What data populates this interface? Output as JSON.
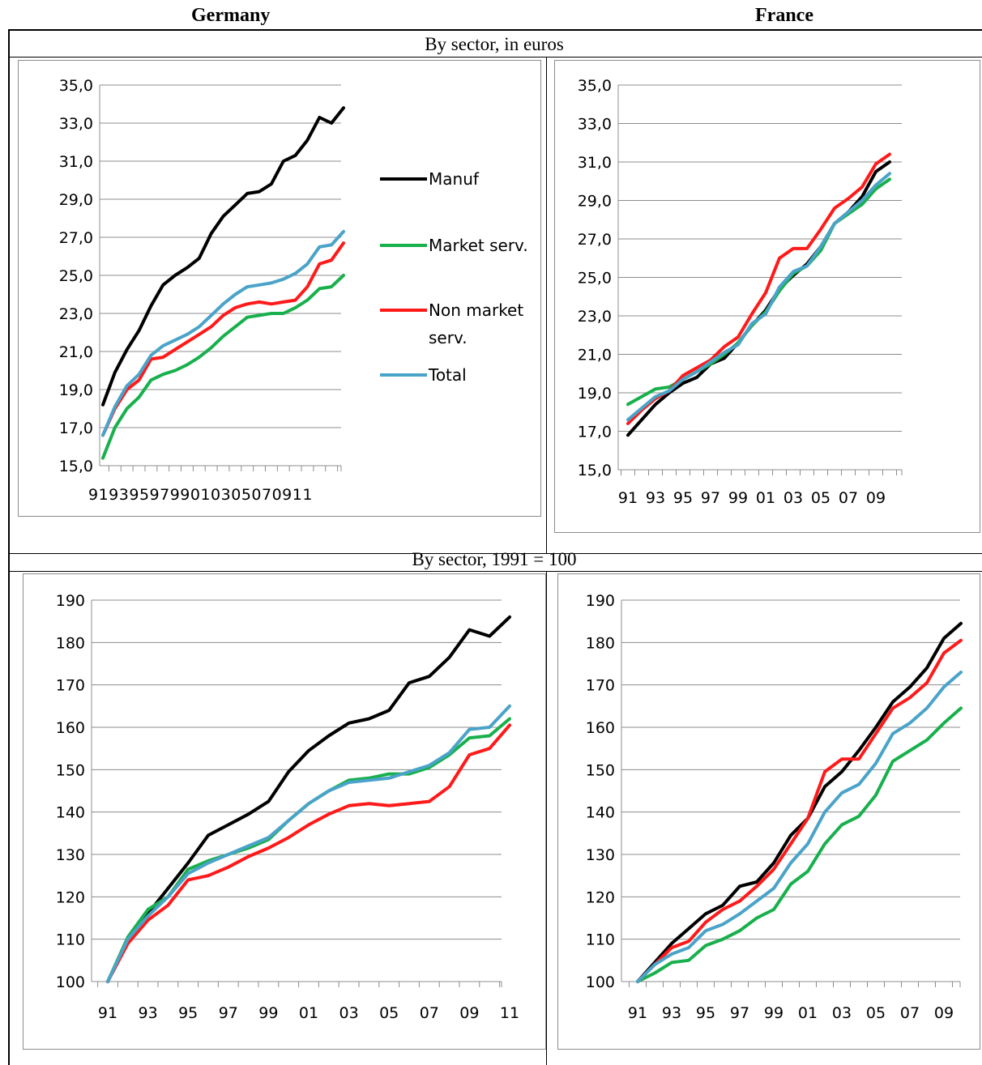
{
  "headers": {
    "left": "Germany",
    "right": "France"
  },
  "sections": {
    "top": "By sector, in euros",
    "bottom": "By sector, 1991 = 100"
  },
  "colors": {
    "Manuf": "#000000",
    "Market serv.": "#18b04c",
    "Non market serv.": "#ff1a1a",
    "Total": "#4aa3c8",
    "grid": "#8c8c8c"
  },
  "chart_data": [
    {
      "id": "germany-euros",
      "type": "line",
      "ylim": [
        15,
        35
      ],
      "yticks": [
        15,
        17,
        19,
        21,
        23,
        25,
        27,
        29,
        31,
        33,
        35
      ],
      "tick_decimals": 1,
      "x": [
        "91",
        "92",
        "93",
        "94",
        "95",
        "96",
        "97",
        "98",
        "99",
        "00",
        "01",
        "02",
        "03",
        "04",
        "05",
        "06",
        "07",
        "08",
        "09",
        "10",
        "11"
      ],
      "xtick_labels": [
        "91",
        "93",
        "95",
        "97",
        "99",
        "01",
        "03",
        "05",
        "07",
        "09",
        "11"
      ],
      "legend": [
        "Manuf",
        "Market serv.",
        "Non market serv.",
        "Total"
      ],
      "series": [
        {
          "name": "Manuf",
          "values": [
            18.2,
            19.9,
            21.1,
            22.1,
            23.4,
            24.5,
            25.0,
            25.4,
            25.9,
            27.2,
            28.1,
            28.7,
            29.3,
            29.4,
            29.8,
            31.0,
            31.3,
            32.1,
            33.3,
            33.0,
            33.8
          ]
        },
        {
          "name": "Market serv.",
          "values": [
            15.4,
            17.0,
            18.0,
            18.6,
            19.5,
            19.8,
            20.0,
            20.3,
            20.7,
            21.2,
            21.8,
            22.3,
            22.8,
            22.9,
            23.0,
            23.0,
            23.3,
            23.7,
            24.3,
            24.4,
            25.0
          ]
        },
        {
          "name": "Non market serv.",
          "values": [
            16.6,
            18.0,
            19.0,
            19.5,
            20.6,
            20.7,
            21.1,
            21.5,
            21.9,
            22.3,
            22.9,
            23.3,
            23.5,
            23.6,
            23.5,
            23.6,
            23.7,
            24.4,
            25.6,
            25.8,
            26.7
          ]
        },
        {
          "name": "Total",
          "values": [
            16.6,
            18.1,
            19.2,
            19.8,
            20.8,
            21.3,
            21.6,
            21.9,
            22.3,
            22.9,
            23.5,
            24.0,
            24.4,
            24.5,
            24.6,
            24.8,
            25.1,
            25.6,
            26.5,
            26.6,
            27.3
          ]
        }
      ]
    },
    {
      "id": "france-euros",
      "type": "line",
      "ylim": [
        15,
        35
      ],
      "yticks": [
        15,
        17,
        19,
        21,
        23,
        25,
        27,
        29,
        31,
        33,
        35
      ],
      "tick_decimals": 1,
      "x": [
        "91",
        "92",
        "93",
        "94",
        "95",
        "96",
        "97",
        "98",
        "99",
        "00",
        "01",
        "02",
        "03",
        "04",
        "05",
        "06",
        "07",
        "08",
        "09",
        "10"
      ],
      "xtick_labels": [
        "91",
        "93",
        "95",
        "97",
        "99",
        "01",
        "03",
        "05",
        "07",
        "09"
      ],
      "series": [
        {
          "name": "Manuf",
          "values": [
            16.8,
            17.6,
            18.4,
            19.0,
            19.5,
            19.8,
            20.5,
            20.8,
            21.6,
            22.5,
            23.3,
            24.4,
            25.1,
            25.7,
            26.6,
            27.8,
            28.4,
            29.2,
            30.5,
            31.0
          ]
        },
        {
          "name": "Market serv.",
          "values": [
            18.4,
            18.8,
            19.2,
            19.3,
            19.7,
            20.1,
            20.5,
            21.0,
            21.6,
            22.5,
            23.2,
            24.3,
            25.2,
            25.6,
            26.4,
            27.8,
            28.3,
            28.8,
            29.6,
            30.1
          ]
        },
        {
          "name": "Non market serv.",
          "values": [
            17.4,
            18.1,
            18.7,
            19.1,
            19.9,
            20.3,
            20.7,
            21.4,
            21.9,
            23.1,
            24.2,
            26.0,
            26.5,
            26.5,
            27.5,
            28.6,
            29.1,
            29.7,
            30.9,
            31.4
          ]
        },
        {
          "name": "Total",
          "values": [
            17.6,
            18.2,
            18.8,
            19.1,
            19.7,
            20.1,
            20.6,
            21.1,
            21.5,
            22.6,
            23.1,
            24.5,
            25.3,
            25.6,
            26.6,
            27.8,
            28.4,
            29.0,
            29.8,
            30.4
          ]
        }
      ]
    },
    {
      "id": "germany-index",
      "type": "line",
      "ylim": [
        100,
        190
      ],
      "yticks": [
        100,
        110,
        120,
        130,
        140,
        150,
        160,
        170,
        180,
        190
      ],
      "tick_decimals": 0,
      "x": [
        "91",
        "92",
        "93",
        "94",
        "95",
        "96",
        "97",
        "98",
        "99",
        "00",
        "01",
        "02",
        "03",
        "04",
        "05",
        "06",
        "07",
        "08",
        "09",
        "10",
        "11"
      ],
      "xtick_labels": [
        "91",
        "93",
        "95",
        "97",
        "99",
        "01",
        "03",
        "05",
        "07",
        "09",
        "11"
      ],
      "series": [
        {
          "name": "Manuf",
          "values": [
            100,
            110,
            116,
            122,
            128,
            134.5,
            137,
            139.5,
            142.5,
            149.5,
            154.5,
            158,
            161,
            162,
            164,
            170.5,
            172,
            176.5,
            183,
            181.5,
            186
          ]
        },
        {
          "name": "Market serv.",
          "values": [
            100,
            110.5,
            117,
            120,
            126.5,
            128.5,
            130,
            131.5,
            133.5,
            138,
            142,
            145,
            147.5,
            148,
            149,
            149,
            150.5,
            153.5,
            157.5,
            158,
            162
          ]
        },
        {
          "name": "Non market serv.",
          "values": [
            100,
            109,
            114.5,
            118,
            124,
            125,
            127,
            129.5,
            131.5,
            134,
            137,
            139.5,
            141.5,
            142,
            141.5,
            142,
            142.5,
            146,
            153.5,
            155,
            160.5
          ]
        },
        {
          "name": "Total",
          "values": [
            100,
            110,
            115.5,
            120,
            125.5,
            128,
            130,
            132,
            134,
            138,
            142,
            145,
            147,
            147.5,
            148,
            149.5,
            151,
            154,
            159.5,
            160,
            165
          ]
        }
      ]
    },
    {
      "id": "france-index",
      "type": "line",
      "ylim": [
        100,
        190
      ],
      "yticks": [
        100,
        110,
        120,
        130,
        140,
        150,
        160,
        170,
        180,
        190
      ],
      "tick_decimals": 0,
      "x": [
        "91",
        "92",
        "93",
        "94",
        "95",
        "96",
        "97",
        "98",
        "99",
        "00",
        "01",
        "02",
        "03",
        "04",
        "05",
        "06",
        "07",
        "08",
        "09",
        "10"
      ],
      "xtick_labels": [
        "91",
        "93",
        "95",
        "97",
        "99",
        "01",
        "03",
        "05",
        "07",
        "09"
      ],
      "series": [
        {
          "name": "Manuf",
          "values": [
            100,
            104.5,
            109,
            112.5,
            116,
            118,
            122.5,
            123.5,
            128,
            134.5,
            138.5,
            146,
            149.5,
            154.5,
            160,
            166,
            169.5,
            174,
            181,
            184.5
          ]
        },
        {
          "name": "Market serv.",
          "values": [
            100,
            102,
            104.5,
            105,
            108.5,
            110,
            112,
            115,
            117,
            123,
            126,
            132.5,
            137,
            139,
            144,
            152,
            154.5,
            157,
            161,
            164.5
          ]
        },
        {
          "name": "Non market serv.",
          "values": [
            100,
            104,
            108,
            109.5,
            114,
            117,
            119,
            122.5,
            126.5,
            132.5,
            138.5,
            149.5,
            152.5,
            152.5,
            158.5,
            164.5,
            167,
            170.5,
            177.5,
            180.5
          ]
        },
        {
          "name": "Total",
          "values": [
            100,
            104,
            106.5,
            108,
            112,
            113.5,
            116,
            119,
            122,
            128,
            132.5,
            140,
            144.5,
            146.5,
            151.5,
            158.5,
            161,
            164.5,
            169.5,
            173
          ]
        }
      ]
    }
  ]
}
